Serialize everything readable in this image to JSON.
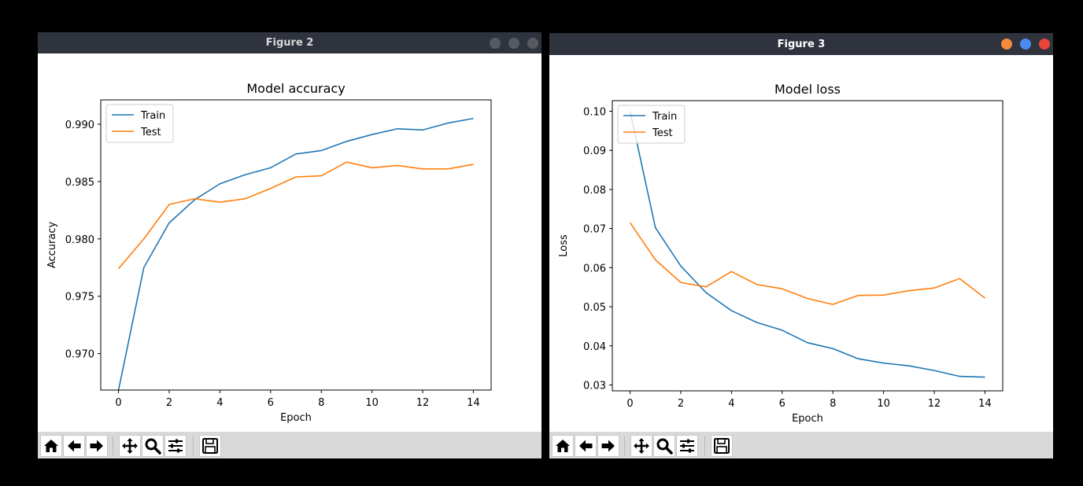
{
  "windows": [
    {
      "title": "Figure 2",
      "buttons": {
        "minimize": "#555a63",
        "maximize": "#555a63",
        "close": "#555a63"
      },
      "toolbar": [
        "home-icon",
        "back-icon",
        "forward-icon",
        "pan-icon",
        "zoom-icon",
        "subplots-icon",
        "save-icon"
      ]
    },
    {
      "title": "Figure 3",
      "buttons": {
        "minimize": "#f6893b",
        "maximize": "#4d8af0",
        "close": "#e9443a"
      },
      "toolbar": [
        "home-icon",
        "back-icon",
        "forward-icon",
        "pan-icon",
        "zoom-icon",
        "subplots-icon",
        "save-icon"
      ]
    }
  ],
  "chart_data": [
    {
      "type": "line",
      "title": "Model accuracy",
      "xlabel": "Epoch",
      "ylabel": "Accuracy",
      "x": [
        0,
        1,
        2,
        3,
        4,
        5,
        6,
        7,
        8,
        9,
        10,
        11,
        12,
        13,
        14
      ],
      "xlim": [
        -0.7,
        14.7
      ],
      "ylim": [
        0.96682,
        0.99212
      ],
      "xticks": [
        0,
        2,
        4,
        6,
        8,
        10,
        12,
        14
      ],
      "yticks": [
        0.97,
        0.975,
        0.98,
        0.985,
        0.99
      ],
      "ytick_labels": [
        "0.970",
        "0.975",
        "0.980",
        "0.985",
        "0.990"
      ],
      "legend": "top-left",
      "series": [
        {
          "name": "Train",
          "color": "#1f77b4",
          "values": [
            0.9668,
            0.9775,
            0.9814,
            0.9834,
            0.9848,
            0.9856,
            0.9862,
            0.9874,
            0.9877,
            0.9885,
            0.9891,
            0.9896,
            0.9895,
            0.9901,
            0.9905
          ]
        },
        {
          "name": "Test",
          "color": "#ff7f0e",
          "values": [
            0.9774,
            0.98,
            0.983,
            0.9835,
            0.9832,
            0.9835,
            0.9844,
            0.9854,
            0.9855,
            0.9867,
            0.9862,
            0.9864,
            0.9861,
            0.9861,
            0.9865
          ]
        }
      ]
    },
    {
      "type": "line",
      "title": "Model loss",
      "xlabel": "Epoch",
      "ylabel": "Loss",
      "x": [
        0,
        1,
        2,
        3,
        4,
        5,
        6,
        7,
        8,
        9,
        10,
        11,
        12,
        13,
        14
      ],
      "xlim": [
        -0.7,
        14.7
      ],
      "ylim": [
        0.0285,
        0.1027
      ],
      "xticks": [
        0,
        2,
        4,
        6,
        8,
        10,
        12,
        14
      ],
      "yticks": [
        0.03,
        0.04,
        0.05,
        0.06,
        0.07,
        0.08,
        0.09,
        0.1
      ],
      "ytick_labels": [
        "0.03",
        "0.04",
        "0.05",
        "0.06",
        "0.07",
        "0.08",
        "0.09",
        "0.10"
      ],
      "legend": "top-left",
      "series": [
        {
          "name": "Train",
          "color": "#1f77b4",
          "values": [
            0.1,
            0.0702,
            0.0604,
            0.0536,
            0.049,
            0.046,
            0.044,
            0.0408,
            0.0393,
            0.0367,
            0.0356,
            0.0349,
            0.0337,
            0.0322,
            0.032
          ]
        },
        {
          "name": "Test",
          "color": "#ff7f0e",
          "values": [
            0.0715,
            0.062,
            0.0562,
            0.0551,
            0.059,
            0.0557,
            0.0546,
            0.0521,
            0.0506,
            0.0529,
            0.053,
            0.0541,
            0.0548,
            0.0572,
            0.0522
          ]
        }
      ]
    }
  ]
}
